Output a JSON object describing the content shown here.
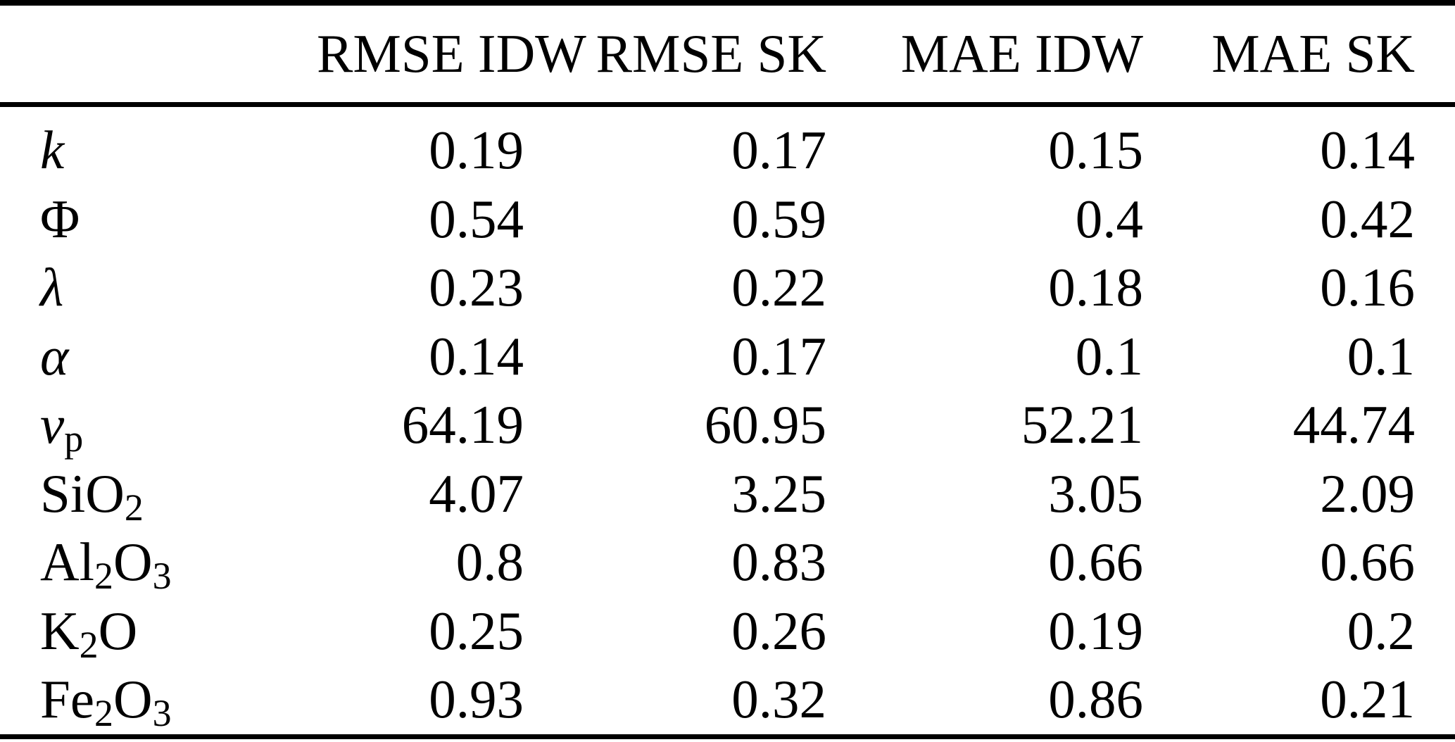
{
  "page": {
    "background": "#ffffff",
    "text_color": "#000000",
    "rule_color": "#000000"
  },
  "table": {
    "type": "table",
    "columns": [
      "",
      "RMSE IDW",
      "RMSE SK",
      "MAE IDW",
      "MAE SK"
    ],
    "rows": [
      {
        "label": "k",
        "label_parts": [
          {
            "t": "k",
            "i": true
          }
        ],
        "values": [
          "0.19",
          "0.17",
          "0.15",
          "0.14"
        ]
      },
      {
        "label": "Φ",
        "label_parts": [
          {
            "t": "Φ"
          }
        ],
        "values": [
          "0.54",
          "0.59",
          "0.4",
          "0.42"
        ]
      },
      {
        "label": "λ",
        "label_parts": [
          {
            "t": "λ",
            "i": true
          }
        ],
        "values": [
          "0.23",
          "0.22",
          "0.18",
          "0.16"
        ]
      },
      {
        "label": "α",
        "label_parts": [
          {
            "t": "α",
            "i": true
          }
        ],
        "values": [
          "0.14",
          "0.17",
          "0.1",
          "0.1"
        ]
      },
      {
        "label": "vp",
        "label_parts": [
          {
            "t": "v",
            "i": true
          },
          {
            "t": "p",
            "sub": true
          }
        ],
        "values": [
          "64.19",
          "60.95",
          "52.21",
          "44.74"
        ]
      },
      {
        "label": "SiO2",
        "label_parts": [
          {
            "t": "SiO"
          },
          {
            "t": "2",
            "sub": true
          }
        ],
        "values": [
          "4.07",
          "3.25",
          "3.05",
          "2.09"
        ]
      },
      {
        "label": "Al2O3",
        "label_parts": [
          {
            "t": "Al"
          },
          {
            "t": "2",
            "sub": true
          },
          {
            "t": "O"
          },
          {
            "t": "3",
            "sub": true
          }
        ],
        "values": [
          "0.8",
          "0.83",
          "0.66",
          "0.66"
        ]
      },
      {
        "label": "K2O",
        "label_parts": [
          {
            "t": "K"
          },
          {
            "t": "2",
            "sub": true
          },
          {
            "t": "O"
          }
        ],
        "values": [
          "0.25",
          "0.26",
          "0.19",
          "0.2"
        ]
      },
      {
        "label": "Fe2O3",
        "label_parts": [
          {
            "t": "Fe"
          },
          {
            "t": "2",
            "sub": true
          },
          {
            "t": "O"
          },
          {
            "t": "3",
            "sub": true
          }
        ],
        "values": [
          "0.93",
          "0.32",
          "0.86",
          "0.21"
        ]
      }
    ]
  }
}
